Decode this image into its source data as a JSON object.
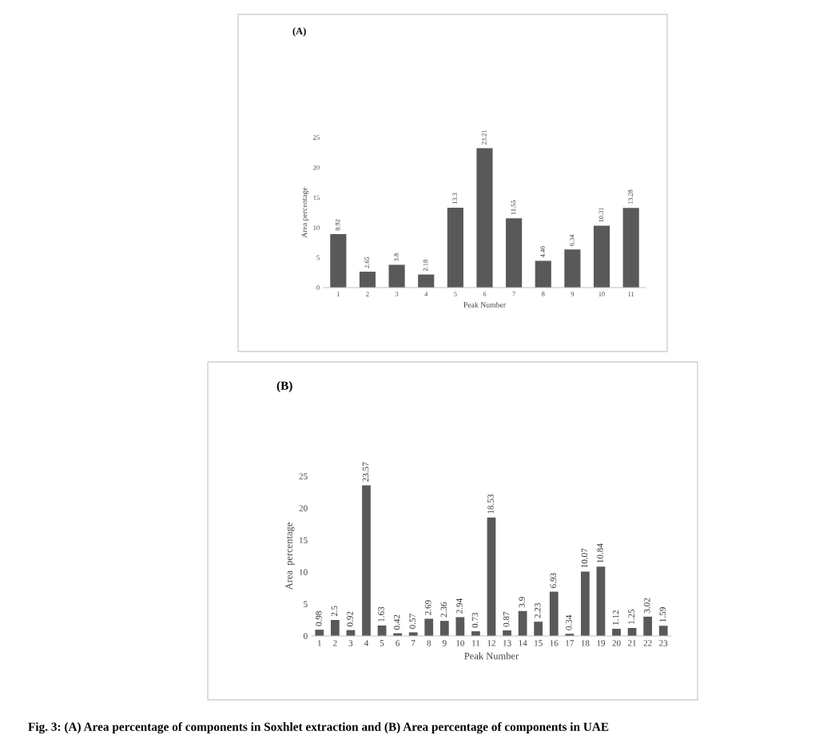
{
  "chart_data": [
    {
      "type": "bar",
      "title": "(A)",
      "xlabel": "Peak Number",
      "ylabel": "Area percentage",
      "categories": [
        "1",
        "2",
        "3",
        "4",
        "5",
        "6",
        "7",
        "8",
        "9",
        "10",
        "11"
      ],
      "values": [
        8.92,
        2.65,
        3.8,
        2.18,
        13.3,
        23.21,
        11.55,
        4.46,
        6.34,
        10.31,
        13.28
      ],
      "color": "#595959",
      "ylim": [
        0,
        25
      ],
      "yticks": [
        0,
        5,
        10,
        15,
        20,
        25
      ],
      "grid": false,
      "data_labels": true
    },
    {
      "type": "bar",
      "title": "(B)",
      "xlabel": "Peak Number",
      "ylabel": "Area  percentage",
      "categories": [
        "1",
        "2",
        "3",
        "4",
        "5",
        "6",
        "7",
        "8",
        "9",
        "10",
        "11",
        "12",
        "13",
        "14",
        "15",
        "16",
        "17",
        "18",
        "19",
        "20",
        "21",
        "22",
        "23"
      ],
      "values": [
        0.98,
        2.5,
        0.92,
        23.57,
        1.63,
        0.42,
        0.57,
        2.69,
        2.36,
        2.94,
        0.73,
        18.53,
        0.87,
        3.9,
        2.23,
        6.93,
        0.34,
        10.07,
        10.84,
        1.12,
        1.25,
        3.02,
        1.59
      ],
      "color": "#595959",
      "ylim": [
        0,
        25
      ],
      "yticks": [
        0,
        5,
        10,
        15,
        20,
        25
      ],
      "grid": false,
      "data_labels": true,
      "annotations": [
        "Fig. 3: (A) Area percentage of components in Soxhlet extraction and (B) Area percentage of components in UAE"
      ]
    }
  ]
}
